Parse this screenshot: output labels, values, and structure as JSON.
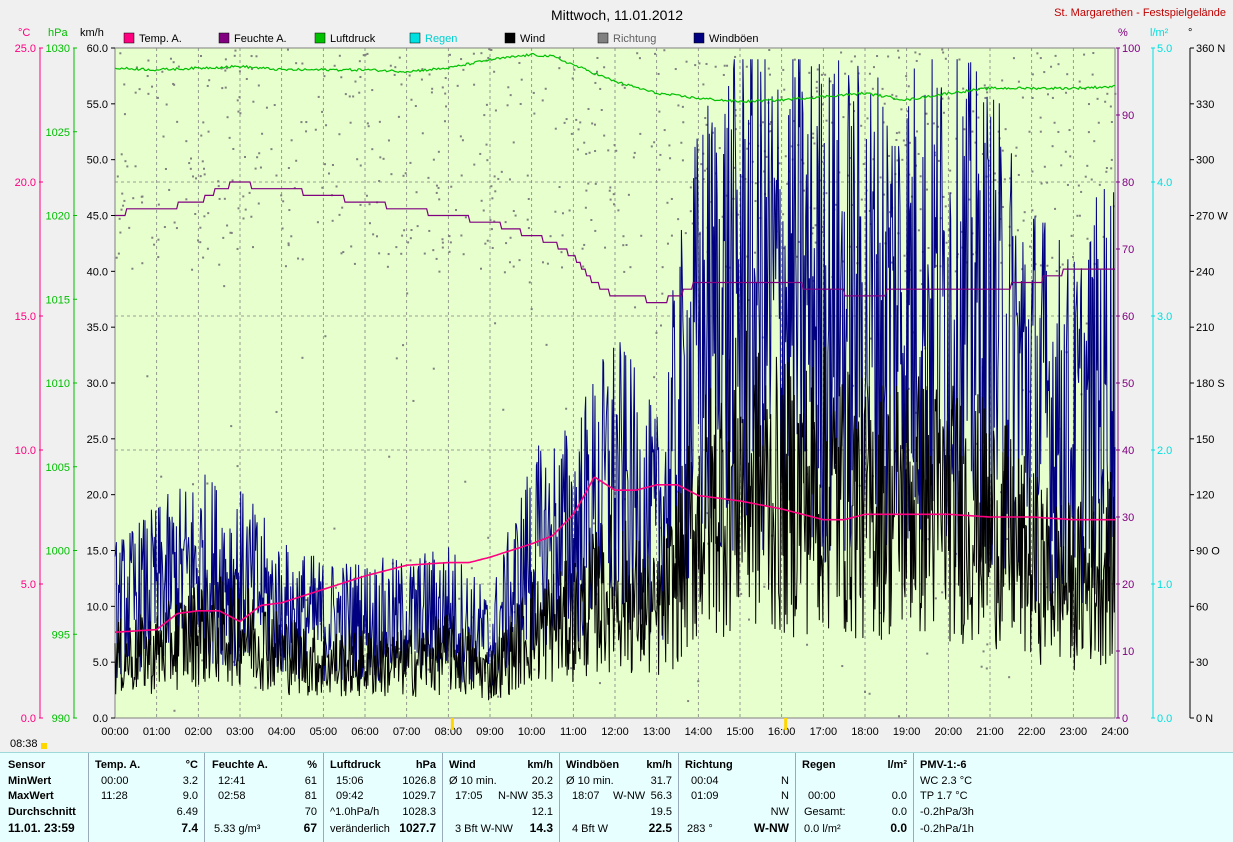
{
  "title": "Mittwoch, 11.01.2012",
  "location": "St. Margarethen - Festspielgelände",
  "header_units": {
    "temp": "°C",
    "pressure": "hPa",
    "wind": "km/h",
    "humidity": "%",
    "rain": "l/m²",
    "direction": "°"
  },
  "legend": [
    {
      "name": "Temp. A.",
      "color": "#ff0080"
    },
    {
      "name": "Feuchte A.",
      "color": "#800080"
    },
    {
      "name": "Luftdruck",
      "color": "#00c000"
    },
    {
      "name": "Regen",
      "color": "#00e0e0"
    },
    {
      "name": "Wind",
      "color": "#000000"
    },
    {
      "name": "Richtung",
      "color": "#808080"
    },
    {
      "name": "Windböen",
      "color": "#000080"
    }
  ],
  "axes": {
    "temp_ticks": [
      "25.0",
      "20.0",
      "15.0",
      "10.0",
      "5.0",
      "0.0"
    ],
    "pressure_ticks": [
      "1030",
      "1025",
      "1020",
      "1015",
      "1010",
      "1005",
      "1000",
      "995",
      "990"
    ],
    "wind_ticks": [
      "60.0",
      "55.0",
      "50.0",
      "45.0",
      "40.0",
      "35.0",
      "30.0",
      "25.0",
      "20.0",
      "15.0",
      "10.0",
      "5.0",
      "0.0"
    ],
    "humidity_ticks": [
      "100",
      "90",
      "80",
      "70",
      "60",
      "50",
      "40",
      "30",
      "20",
      "10",
      "0"
    ],
    "rain_ticks": [
      "5.0",
      "4.0",
      "3.0",
      "2.0",
      "1.0",
      "0.0"
    ],
    "dir_ticks": [
      "360 N",
      "330",
      "300",
      "270 W",
      "240",
      "210",
      "180 S",
      "150",
      "120",
      "90  O",
      "60",
      "30",
      "0  N"
    ],
    "time_ticks": [
      "00:00",
      "01:00",
      "02:00",
      "03:00",
      "04:00",
      "05:00",
      "06:00",
      "07:00",
      "08:00",
      "09:00",
      "10:00",
      "11:00",
      "12:00",
      "13:00",
      "14:00",
      "15:00",
      "16:00",
      "17:00",
      "18:00",
      "19:00",
      "20:00",
      "21:00",
      "22:00",
      "23:00",
      "24:00"
    ]
  },
  "chart_data": {
    "type": "line",
    "title": "Mittwoch, 11.01.2012",
    "x_unit": "hours",
    "xlim": [
      0,
      24
    ],
    "series": [
      {
        "name": "Temp. A.",
        "unit": "°C",
        "ylim": [
          0,
          25
        ],
        "color": "#ff0080",
        "x": [
          0,
          1,
          1.5,
          2,
          2.5,
          3,
          3.5,
          4,
          5,
          6,
          7,
          8,
          8.5,
          9,
          10,
          10.5,
          11,
          11.3,
          11.5,
          12,
          12.5,
          13,
          13.5,
          14,
          15,
          16,
          17,
          17.5,
          18,
          19,
          20,
          21,
          22,
          23,
          24
        ],
        "y": [
          3.2,
          3.3,
          3.9,
          4.0,
          4.0,
          3.6,
          4.2,
          4.3,
          4.8,
          5.3,
          5.7,
          5.8,
          5.8,
          6.0,
          6.5,
          6.8,
          7.6,
          8.4,
          9.0,
          8.5,
          8.5,
          8.7,
          8.7,
          8.3,
          8.1,
          7.8,
          7.4,
          7.4,
          7.6,
          7.6,
          7.6,
          7.5,
          7.5,
          7.4,
          7.4
        ]
      },
      {
        "name": "Feuchte A.",
        "unit": "%",
        "ylim": [
          0,
          100
        ],
        "color": "#800080",
        "x": [
          0,
          0.5,
          1,
          2,
          2.5,
          3,
          3.5,
          4,
          5,
          6,
          7,
          8,
          9,
          10,
          10.5,
          11,
          11.5,
          12,
          12.5,
          13,
          13.5,
          14,
          15,
          16,
          17,
          18,
          19,
          20,
          21,
          22,
          23,
          24
        ],
        "y": [
          75,
          76,
          76,
          77,
          79,
          80,
          79,
          79,
          78,
          77,
          76,
          75,
          74,
          72,
          71,
          69,
          65,
          63,
          63,
          62,
          63,
          65,
          65,
          65,
          64,
          63,
          64,
          64,
          64,
          65,
          67,
          67
        ]
      },
      {
        "name": "Luftdruck",
        "unit": "hPa",
        "ylim": [
          990,
          1030
        ],
        "color": "#00c000",
        "x": [
          0,
          1,
          2,
          3,
          4,
          5,
          6,
          7,
          8,
          9,
          10,
          10.5,
          11,
          12,
          13,
          14,
          15,
          16,
          17,
          18,
          19,
          20,
          21,
          22,
          23,
          24
        ],
        "y": [
          1028.8,
          1028.7,
          1028.8,
          1028.9,
          1028.7,
          1028.7,
          1028.7,
          1028.6,
          1028.8,
          1029.3,
          1029.6,
          1029.5,
          1029.0,
          1028.0,
          1027.3,
          1027.0,
          1026.8,
          1026.9,
          1027.1,
          1027.3,
          1026.9,
          1027.3,
          1027.6,
          1027.6,
          1027.6,
          1027.7
        ]
      },
      {
        "name": "Wind",
        "unit": "km/h",
        "ylim": [
          0,
          60
        ],
        "color": "#000000",
        "x": [
          0,
          1,
          2,
          3,
          4,
          5,
          6,
          7,
          8,
          9,
          10,
          11,
          12,
          13,
          13.5,
          14,
          15,
          16,
          17,
          18,
          19,
          20,
          21,
          22,
          23,
          24
        ],
        "y": [
          5.5,
          6,
          8,
          8,
          6,
          5,
          5,
          5,
          6,
          4,
          8,
          9,
          12,
          9,
          13,
          18,
          22,
          20,
          21,
          19,
          20,
          19,
          18,
          14,
          12,
          14
        ]
      },
      {
        "name": "Windböen",
        "unit": "km/h",
        "ylim": [
          0,
          60
        ],
        "color": "#000080",
        "x": [
          0,
          1,
          2,
          3,
          4,
          5,
          6,
          7,
          8,
          9,
          10,
          11,
          12,
          13,
          13.5,
          14,
          15,
          16,
          17,
          18,
          19,
          20,
          21,
          22,
          23,
          24
        ],
        "y": [
          10,
          12,
          14,
          13,
          10,
          9,
          9,
          9,
          10,
          7,
          15,
          17,
          22,
          17,
          26,
          34,
          40,
          38,
          38,
          37,
          38,
          38,
          36,
          30,
          26,
          32
        ]
      }
    ]
  },
  "stats": {
    "sensor": {
      "header": "Sensor",
      "rows": [
        "MinWert",
        "MaxWert",
        "Durchschnitt"
      ],
      "footer": "11.01.  23:59"
    },
    "temp": {
      "header": "Temp. A.",
      "unit": "°C",
      "min_time": "00:00",
      "min": "3.2",
      "max_time": "11:28",
      "max": "9.0",
      "avg": "6.49",
      "current": "7.4"
    },
    "humidity": {
      "header": "Feuchte A.",
      "unit": "%",
      "min_time": "12:41",
      "min": "61",
      "max_time": "02:58",
      "max": "81",
      "avg": "70",
      "abs": "5.33 g/m³",
      "current": "67"
    },
    "pressure": {
      "header": "Luftdruck",
      "unit": "hPa",
      "min_time": "15:06",
      "min": "1026.8",
      "max_time": "09:42",
      "max": "1029.7",
      "trend": "^1.0hPa/h",
      "avg": "1028.3",
      "state": "veränderlich",
      "current": "1027.7"
    },
    "wind": {
      "header": "Wind",
      "unit": "km/h",
      "min_label": "Ø 10 min.",
      "min": "20.2",
      "max_time": "17:05",
      "max_dir": "N-NW",
      "max": "35.3",
      "avg": "12.1",
      "bft": "3 Bft W-NW",
      "current": "14.3"
    },
    "gusts": {
      "header": "Windböen",
      "unit": "km/h",
      "min_label": "Ø 10 min.",
      "min": "31.7",
      "max_time": "18:07",
      "max_dir": "W-NW",
      "max": "56.3",
      "avg": "19.5",
      "bft": "4 Bft W",
      "current": "22.5"
    },
    "direction": {
      "header": "Richtung",
      "min_time": "00:04",
      "min": "N",
      "max_time": "01:09",
      "max": "N",
      "avg": "NW",
      "deg": "283 °",
      "current": "W-NW"
    },
    "rain": {
      "header": "Regen",
      "unit": "l/m²",
      "max_time": "00:00",
      "max": "0.0",
      "total_label": "Gesamt:",
      "total": "0.0",
      "rate": "0.0 l/m²",
      "current": "0.0"
    },
    "pmv": {
      "header": "PMV-1:-6",
      "wc": "WC 2.3 °C",
      "tp": "TP 1.7 °C",
      "trend3h": "-0.2hPa/3h",
      "trend1h": "-0.2hPa/1h"
    }
  },
  "time_marker": "08:38"
}
